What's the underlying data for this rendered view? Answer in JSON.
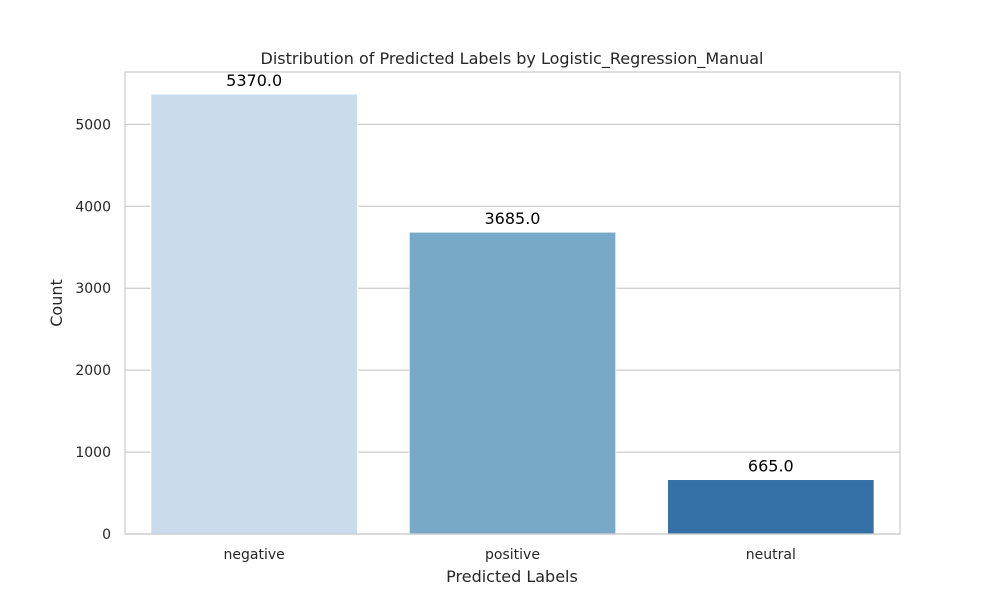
{
  "chart_data": {
    "type": "bar",
    "title": "Distribution of Predicted Labels by Logistic_Regression_Manual",
    "xlabel": "Predicted Labels",
    "ylabel": "Count",
    "categories": [
      "negative",
      "positive",
      "neutral"
    ],
    "values": [
      5370,
      3685,
      665
    ],
    "data_labels": [
      "5370.0",
      "3685.0",
      "665.0"
    ],
    "colors": [
      "#cadbec",
      "#78a9c9",
      "#3470a5"
    ],
    "ylim": [
      0,
      5638.5
    ],
    "yticks": [
      0,
      1000,
      2000,
      3000,
      4000,
      5000
    ],
    "ytick_labels": [
      "0",
      "1000",
      "2000",
      "3000",
      "4000",
      "5000"
    ],
    "grid": true,
    "grid_axis": "y",
    "grid_color": "#cccccc",
    "frame_color": "#cccccc"
  }
}
